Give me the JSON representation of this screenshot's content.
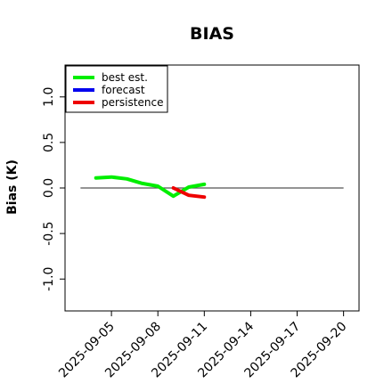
{
  "chart_data": {
    "type": "line",
    "title": "BIAS",
    "xlabel": "",
    "ylabel": "Bias (K)",
    "ylim": [
      -1.35,
      1.35
    ],
    "y_ticks": [
      -1.0,
      -0.5,
      0.0,
      0.5,
      1.0
    ],
    "y_tick_labels": [
      "-1.0",
      "-0.5",
      "0.0",
      "0.5",
      "1.0"
    ],
    "x_axis_type": "date",
    "xlim": [
      "2025-09-02",
      "2025-09-21"
    ],
    "x_ticks": [
      "2025-09-05",
      "2025-09-08",
      "2025-09-11",
      "2025-09-14",
      "2025-09-17",
      "2025-09-20"
    ],
    "highlighted_tick": "2025-09-11",
    "highlight_color": "#228b22",
    "zero_line": {
      "from": "2025-09-03",
      "to": "2025-09-20",
      "y": 0.0,
      "color": "#555555"
    },
    "legend": {
      "position": "top-left"
    },
    "series": [
      {
        "name": "best est.",
        "color": "#00ee00",
        "points": [
          {
            "x": "2025-09-04",
            "y": 0.11
          },
          {
            "x": "2025-09-05",
            "y": 0.12
          },
          {
            "x": "2025-09-06",
            "y": 0.1
          },
          {
            "x": "2025-09-07",
            "y": 0.05
          },
          {
            "x": "2025-09-08",
            "y": 0.02
          },
          {
            "x": "2025-09-09",
            "y": -0.09
          },
          {
            "x": "2025-09-10",
            "y": 0.01
          },
          {
            "x": "2025-09-11",
            "y": 0.04
          }
        ]
      },
      {
        "name": "forecast",
        "color": "#0000ee",
        "points": []
      },
      {
        "name": "persistence",
        "color": "#ee0000",
        "points": [
          {
            "x": "2025-09-09",
            "y": 0.0
          },
          {
            "x": "2025-09-10",
            "y": -0.08
          },
          {
            "x": "2025-09-11",
            "y": -0.1
          }
        ]
      }
    ]
  }
}
